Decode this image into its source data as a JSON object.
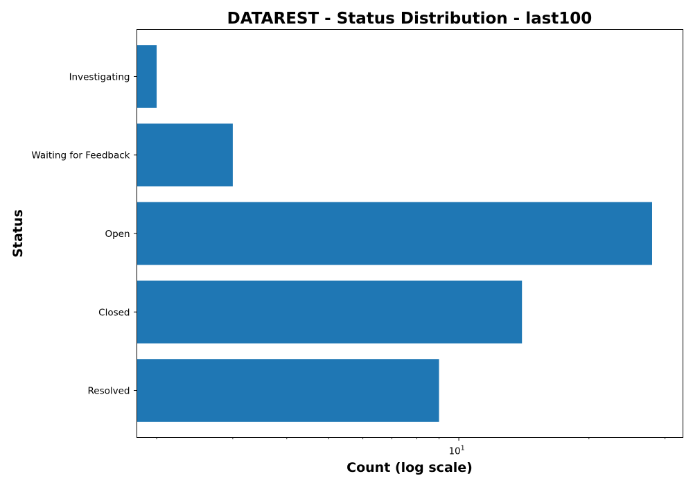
{
  "chart_data": {
    "type": "bar",
    "orientation": "horizontal",
    "title": "DATAREST - Status Distribution - last100",
    "xlabel": "Count (log scale)",
    "ylabel": "Status",
    "x_scale": "log",
    "xlim": [
      1.8,
      33
    ],
    "x_major_tick": {
      "value": 10,
      "label_base": "10",
      "label_exponent": "1"
    },
    "x_minor_ticks": [
      2,
      3,
      4,
      5,
      6,
      7,
      8,
      9,
      20,
      30
    ],
    "categories": [
      "Resolved",
      "Closed",
      "Open",
      "Waiting for Feedback",
      "Investigating"
    ],
    "values": [
      9,
      14,
      28,
      3,
      2
    ],
    "bar_color": "#1f77b4",
    "grid": false,
    "legend": "none"
  }
}
